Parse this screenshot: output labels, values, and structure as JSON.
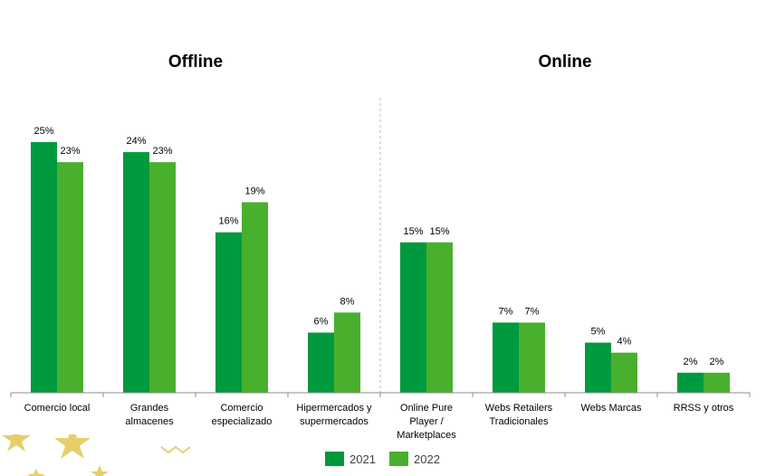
{
  "chart_data": {
    "type": "bar",
    "groups": [
      {
        "title": "Offline",
        "categories": [
          "Comercio local",
          "Grandes almacenes",
          "Comercio especializado",
          "Hipermercados y supermercados"
        ]
      },
      {
        "title": "Online",
        "categories": [
          "Online Pure Player / Marketplaces",
          "Webs Retailers Tradicionales",
          "Webs Marcas",
          "RRSS y otros"
        ]
      }
    ],
    "categories": [
      "Comercio local",
      "Grandes almacenes",
      "Comercio especializado",
      "Hipermercados y supermercados",
      "Online Pure Player / Marketplaces",
      "Webs Retailers Tradicionales",
      "Webs Marcas",
      "RRSS y otros"
    ],
    "category_lines": [
      [
        "Comercio local"
      ],
      [
        "Grandes",
        "almacenes"
      ],
      [
        "Comercio",
        "especializado"
      ],
      [
        "Hipermercados y",
        "supermercados"
      ],
      [
        "Online Pure",
        "Player /",
        "Marketplaces"
      ],
      [
        "Webs Retailers",
        "Tradicionales"
      ],
      [
        "Webs Marcas"
      ],
      [
        "RRSS y otros"
      ]
    ],
    "series": [
      {
        "name": "2021",
        "color": "#009a3e",
        "values": [
          25,
          24,
          16,
          6,
          15,
          7,
          5,
          2
        ]
      },
      {
        "name": "2022",
        "color": "#49b02d",
        "values": [
          23,
          23,
          19,
          8,
          15,
          7,
          4,
          2
        ]
      }
    ],
    "value_suffix": "%",
    "ylim": [
      0,
      27
    ],
    "legend_position": "bottom-center",
    "grid": false
  },
  "decor": {
    "star_color": "#e6cf6a"
  }
}
